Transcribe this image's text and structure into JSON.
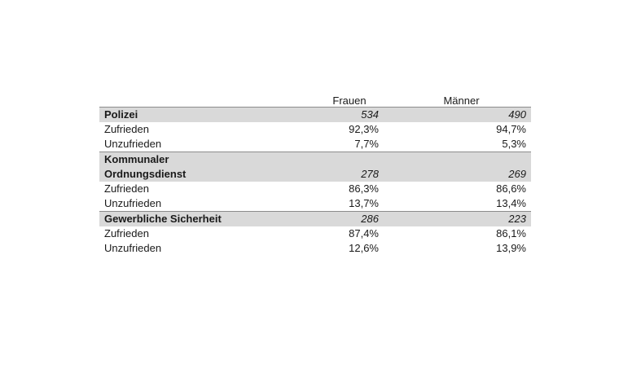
{
  "table": {
    "headers": {
      "label": "",
      "frauen": "Frauen",
      "maenner": "Männer"
    },
    "groups": [
      {
        "label_line1": "Polizei",
        "label_line2": "",
        "frauen_n": "534",
        "maenner_n": "490",
        "rows": [
          {
            "label": "Zufrieden",
            "frauen": "92,3%",
            "maenner": "94,7%"
          },
          {
            "label": "Unzufrieden",
            "frauen": "7,7%",
            "maenner": "5,3%"
          }
        ]
      },
      {
        "label_line1": "Kommunaler",
        "label_line2": "Ordnungsdienst",
        "frauen_n": "278",
        "maenner_n": "269",
        "rows": [
          {
            "label": "Zufrieden",
            "frauen": "86,3%",
            "maenner": "86,6%"
          },
          {
            "label": "Unzufrieden",
            "frauen": "13,7%",
            "maenner": "13,4%"
          }
        ]
      },
      {
        "label_line1": "Gewerbliche Sicherheit",
        "label_line2": "",
        "frauen_n": "286",
        "maenner_n": "223",
        "rows": [
          {
            "label": "Zufrieden",
            "frauen": "87,4%",
            "maenner": "86,1%"
          },
          {
            "label": "Unzufrieden",
            "frauen": "12,6%",
            "maenner": "13,9%"
          }
        ]
      }
    ]
  }
}
